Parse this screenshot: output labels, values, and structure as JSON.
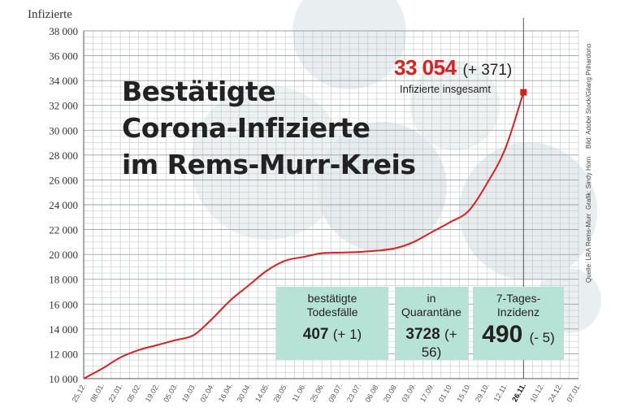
{
  "chart_data": {
    "type": "line",
    "ylabel": "Infizierte",
    "ylim": [
      10000,
      38000
    ],
    "yticks": [
      10000,
      12000,
      14000,
      16000,
      18000,
      20000,
      22000,
      24000,
      26000,
      28000,
      30000,
      32000,
      34000,
      36000,
      38000
    ],
    "ytick_labels": [
      "10 000",
      "12 000",
      "14 000",
      "16 000",
      "18 000",
      "20 000",
      "22 000",
      "24 000",
      "26 000",
      "28 000",
      "30 000",
      "32 000",
      "34 000",
      "36 000",
      "38 000"
    ],
    "xtick_labels": [
      "25.12.",
      "08.01.",
      "22.01.",
      "05.02.",
      "19.02.",
      "05.03.",
      "19.03.",
      "02.04.",
      "16.04.",
      "30.04.",
      "14.05.",
      "28.05.",
      "11.06.",
      "25.06.",
      "09.07.",
      "23.07.",
      "06.08.",
      "20.08.",
      "03.09.",
      "17.09.",
      "01.10.",
      "15.10.",
      "29.10.",
      "12.11.",
      "26.11.",
      "10.12.",
      "24.12.",
      "07.01."
    ],
    "highlight_tick": "26.11.",
    "grid": true,
    "series": [
      {
        "color": "#d7201f",
        "x": [
          "25.12.",
          "08.01.",
          "22.01.",
          "05.02.",
          "19.02.",
          "05.03.",
          "19.03.",
          "02.04.",
          "16.04.",
          "30.04.",
          "14.05.",
          "28.05.",
          "11.06.",
          "25.06.",
          "09.07.",
          "23.07.",
          "06.08.",
          "20.08.",
          "03.09.",
          "17.09.",
          "01.10.",
          "15.10.",
          "29.10.",
          "12.11.",
          "26.11."
        ],
        "values": [
          10000,
          10800,
          11700,
          12300,
          12700,
          13100,
          13500,
          14800,
          16300,
          17500,
          18700,
          19500,
          19800,
          20100,
          20150,
          20200,
          20300,
          20500,
          21000,
          21800,
          22600,
          23500,
          25700,
          28500,
          33054
        ]
      }
    ]
  },
  "title_lines": [
    "Bestätigte",
    "Corona-Infizierte",
    "im Rems-Murr-Kreis"
  ],
  "total": {
    "value": "33 054",
    "delta": "(+ 371)",
    "label": "Infizierte insgesamt"
  },
  "boxes": [
    {
      "label1": "bestätigte",
      "label2": "Todesfälle",
      "value": "407",
      "delta": "(+ 1)"
    },
    {
      "label1": "in",
      "label2": "Quarantäne",
      "value": "3728",
      "delta": "(+ 56)"
    },
    {
      "label1": "7-Tages-",
      "label2": "Inzidenz",
      "value": "490",
      "delta": "(- 5)"
    }
  ],
  "credits": [
    "Bild: Adobe Stock/Gilang Prihardono",
    "Grafik: Sindy Horn",
    "Quelle: LRA Rems-Murr"
  ],
  "colors": {
    "accent": "#d7201f",
    "box_bg": "#b7e3d6"
  }
}
